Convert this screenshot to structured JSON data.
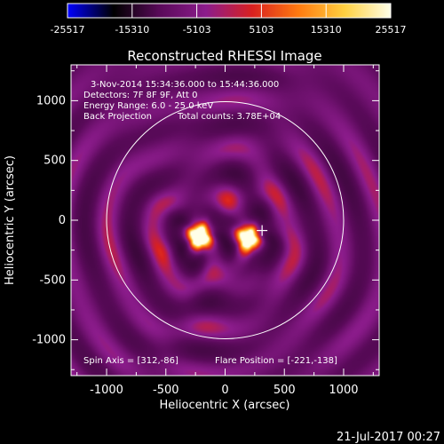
{
  "colorbar": {
    "tick_labels": [
      "-25517",
      "-15310",
      "-5103",
      "5103",
      "15310",
      "25517"
    ],
    "range": [
      -25517,
      25517
    ],
    "colormap": [
      "#0000ff",
      "#000000",
      "#5a0a5a",
      "#8c1c8c",
      "#d82020",
      "#ff7a10",
      "#ffd040",
      "#ffffe8"
    ]
  },
  "chart_data": {
    "type": "heatmap",
    "title": "Reconstructed RHESSI Image",
    "xlabel": "Heliocentric X (arcsec)",
    "ylabel": "Heliocentric Y (arcsec)",
    "xlim": [
      -1300,
      1300
    ],
    "ylim": [
      -1300,
      1300
    ],
    "xticks": [
      -1000,
      -500,
      0,
      500,
      1000
    ],
    "yticks": [
      -1000,
      -500,
      0,
      500,
      1000
    ],
    "x_tick_labels": [
      "-1000",
      "-500",
      "0",
      "500",
      "1000"
    ],
    "y_tick_labels": [
      "-1000",
      "-500",
      "0",
      "500",
      "1000"
    ],
    "sources": [
      {
        "x": -221,
        "y": -138,
        "level": 25517
      },
      {
        "x": 200,
        "y": -150,
        "level": 22000
      }
    ],
    "flare_position": [
      -221,
      -138
    ],
    "spin_axis": [
      312,
      -86
    ],
    "marker_position": [
      312,
      -86
    ],
    "solar_disk_radius": 1000,
    "annotations": {
      "time": "3-Nov-2014 15:34:36.000 to 15:44:36.000",
      "detectors": "Detectors: 7F 8F 9F, Att 0",
      "energy": "Energy Range: 6.0 - 25.0 keV",
      "method": "Back Projection",
      "counts": "Total counts: 3.78E+04",
      "spin_axis_text": "Spin Axis = [312,-86]",
      "flare_position_text": "Flare Position = [-221,-138]"
    }
  },
  "footer": {
    "date": "21-Jul-2017 00:27"
  }
}
